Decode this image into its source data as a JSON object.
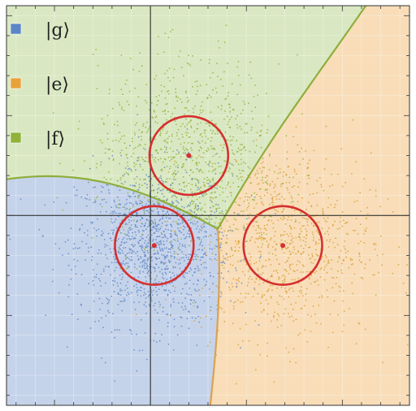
{
  "chart_data": {
    "type": "scatter",
    "xlim": [
      -7.5,
      13.5
    ],
    "ylim": [
      -9.5,
      10.5
    ],
    "grid": true,
    "legend_position": "top-left",
    "legend": [
      {
        "key": "g",
        "text": "|g⟩",
        "color": "#5b86c5"
      },
      {
        "key": "e",
        "text": "|e⟩",
        "color": "#e8a23a"
      },
      {
        "key": "f",
        "text": "|f⟩",
        "color": "#8fb33a"
      }
    ],
    "regions": [
      {
        "state": "g",
        "fill": "#c5d3ea"
      },
      {
        "state": "e",
        "fill": "#f8ddb8"
      },
      {
        "state": "f",
        "fill": "#d9e8c2"
      }
    ],
    "region_boundary_color": "#8fae3d",
    "boundary_e_color": "#d9a255",
    "series": [
      {
        "state": "g",
        "center": [
          0.2,
          -1.5
        ],
        "sigma": 2.0,
        "count": 1300,
        "color": "#6189c8"
      },
      {
        "state": "e",
        "center": [
          6.9,
          -1.5
        ],
        "sigma": 2.3,
        "count": 900,
        "color": "#dba13a"
      },
      {
        "state": "f",
        "center": [
          2.0,
          3.0
        ],
        "sigma": 2.4,
        "count": 900,
        "color": "#92b43d"
      }
    ],
    "centers": [
      {
        "state": "f",
        "x": 2.0,
        "y": 3.0
      },
      {
        "state": "g",
        "x": 0.2,
        "y": -1.5
      },
      {
        "state": "e",
        "x": 6.9,
        "y": -1.5
      }
    ],
    "circle_radius": 2.05,
    "circle_color": "#d62f2f",
    "axis_x_at": 0,
    "axis_y_at": 0
  }
}
